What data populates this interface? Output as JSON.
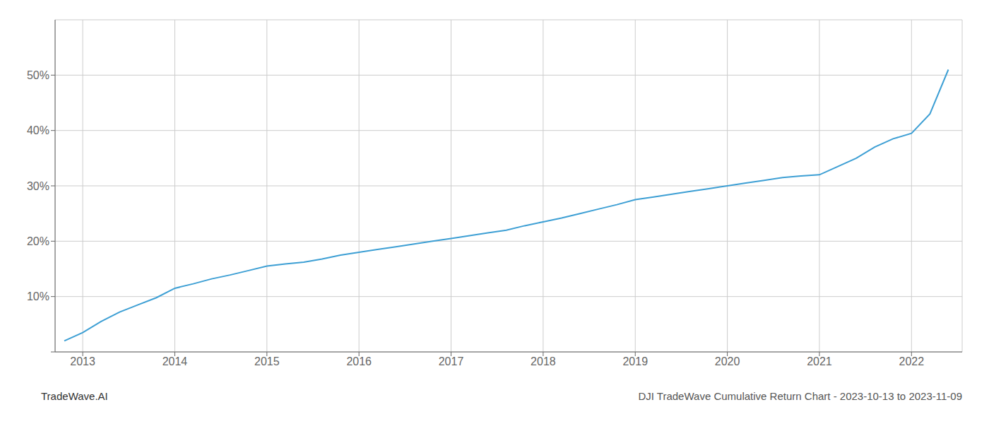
{
  "chart_data": {
    "type": "line",
    "title": "DJI TradeWave Cumulative Return Chart - 2023-10-13 to 2023-11-09",
    "annotations": [
      "TradeWave.AI"
    ],
    "x": [
      2012.8,
      2013.0,
      2013.2,
      2013.4,
      2013.6,
      2013.8,
      2014.0,
      2014.2,
      2014.4,
      2014.6,
      2014.8,
      2015.0,
      2015.2,
      2015.4,
      2015.6,
      2015.8,
      2016.0,
      2016.2,
      2016.4,
      2016.6,
      2016.8,
      2017.0,
      2017.2,
      2017.4,
      2017.6,
      2017.8,
      2018.0,
      2018.2,
      2018.4,
      2018.6,
      2018.8,
      2019.0,
      2019.2,
      2019.4,
      2019.6,
      2019.8,
      2020.0,
      2020.2,
      2020.4,
      2020.6,
      2020.8,
      2021.0,
      2021.2,
      2021.4,
      2021.6,
      2021.8,
      2022.0,
      2022.2,
      2022.4
    ],
    "values": [
      2.0,
      3.5,
      5.5,
      7.2,
      8.5,
      9.8,
      11.5,
      12.3,
      13.2,
      13.9,
      14.7,
      15.5,
      15.9,
      16.2,
      16.8,
      17.5,
      18.0,
      18.5,
      19.0,
      19.5,
      20.0,
      20.5,
      21.0,
      21.5,
      22.0,
      22.8,
      23.5,
      24.2,
      25.0,
      25.8,
      26.6,
      27.5,
      28.0,
      28.5,
      29.0,
      29.5,
      30.0,
      30.5,
      31.0,
      31.5,
      31.8,
      32.0,
      33.5,
      35.0,
      37.0,
      38.5,
      39.5,
      43.0,
      51.0
    ],
    "color": "#3d9fd4",
    "xlim": [
      2012.7,
      2022.55
    ],
    "xticks": [
      2013,
      2014,
      2015,
      2016,
      2017,
      2018,
      2019,
      2020,
      2021,
      2022
    ],
    "ylim": [
      0,
      60
    ],
    "yticks": [
      {
        "value": 0,
        "label": null
      },
      {
        "value": 10,
        "label": "10%"
      },
      {
        "value": 20,
        "label": "20%"
      },
      {
        "value": 30,
        "label": "30%"
      },
      {
        "value": 40,
        "label": "40%"
      },
      {
        "value": 50,
        "label": "50%"
      }
    ],
    "grid": true
  }
}
